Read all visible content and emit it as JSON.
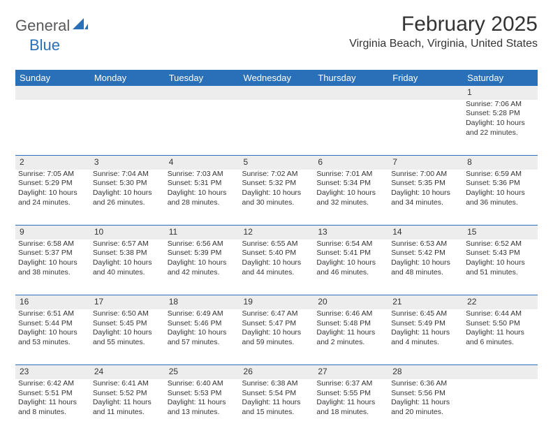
{
  "brand": {
    "part1": "General",
    "part2": "Blue",
    "color_gray": "#58595b",
    "color_blue": "#2970b8"
  },
  "title": "February 2025",
  "location": "Virginia Beach, Virginia, United States",
  "dayHeaders": [
    "Sunday",
    "Monday",
    "Tuesday",
    "Wednesday",
    "Thursday",
    "Friday",
    "Saturday"
  ],
  "colors": {
    "header_bg": "#2970b8",
    "header_fg": "#ffffff",
    "daynum_bg": "#ededed",
    "rule": "#2970b8",
    "text": "#333333",
    "page_bg": "#ffffff"
  },
  "fonts": {
    "title_size": 30,
    "location_size": 16,
    "header_size": 13,
    "cell_size": 10.5
  },
  "weeks": [
    [
      null,
      null,
      null,
      null,
      null,
      null,
      {
        "n": "1",
        "sr": "Sunrise: 7:06 AM",
        "ss": "Sunset: 5:28 PM",
        "d1": "Daylight: 10 hours",
        "d2": "and 22 minutes."
      }
    ],
    [
      {
        "n": "2",
        "sr": "Sunrise: 7:05 AM",
        "ss": "Sunset: 5:29 PM",
        "d1": "Daylight: 10 hours",
        "d2": "and 24 minutes."
      },
      {
        "n": "3",
        "sr": "Sunrise: 7:04 AM",
        "ss": "Sunset: 5:30 PM",
        "d1": "Daylight: 10 hours",
        "d2": "and 26 minutes."
      },
      {
        "n": "4",
        "sr": "Sunrise: 7:03 AM",
        "ss": "Sunset: 5:31 PM",
        "d1": "Daylight: 10 hours",
        "d2": "and 28 minutes."
      },
      {
        "n": "5",
        "sr": "Sunrise: 7:02 AM",
        "ss": "Sunset: 5:32 PM",
        "d1": "Daylight: 10 hours",
        "d2": "and 30 minutes."
      },
      {
        "n": "6",
        "sr": "Sunrise: 7:01 AM",
        "ss": "Sunset: 5:34 PM",
        "d1": "Daylight: 10 hours",
        "d2": "and 32 minutes."
      },
      {
        "n": "7",
        "sr": "Sunrise: 7:00 AM",
        "ss": "Sunset: 5:35 PM",
        "d1": "Daylight: 10 hours",
        "d2": "and 34 minutes."
      },
      {
        "n": "8",
        "sr": "Sunrise: 6:59 AM",
        "ss": "Sunset: 5:36 PM",
        "d1": "Daylight: 10 hours",
        "d2": "and 36 minutes."
      }
    ],
    [
      {
        "n": "9",
        "sr": "Sunrise: 6:58 AM",
        "ss": "Sunset: 5:37 PM",
        "d1": "Daylight: 10 hours",
        "d2": "and 38 minutes."
      },
      {
        "n": "10",
        "sr": "Sunrise: 6:57 AM",
        "ss": "Sunset: 5:38 PM",
        "d1": "Daylight: 10 hours",
        "d2": "and 40 minutes."
      },
      {
        "n": "11",
        "sr": "Sunrise: 6:56 AM",
        "ss": "Sunset: 5:39 PM",
        "d1": "Daylight: 10 hours",
        "d2": "and 42 minutes."
      },
      {
        "n": "12",
        "sr": "Sunrise: 6:55 AM",
        "ss": "Sunset: 5:40 PM",
        "d1": "Daylight: 10 hours",
        "d2": "and 44 minutes."
      },
      {
        "n": "13",
        "sr": "Sunrise: 6:54 AM",
        "ss": "Sunset: 5:41 PM",
        "d1": "Daylight: 10 hours",
        "d2": "and 46 minutes."
      },
      {
        "n": "14",
        "sr": "Sunrise: 6:53 AM",
        "ss": "Sunset: 5:42 PM",
        "d1": "Daylight: 10 hours",
        "d2": "and 48 minutes."
      },
      {
        "n": "15",
        "sr": "Sunrise: 6:52 AM",
        "ss": "Sunset: 5:43 PM",
        "d1": "Daylight: 10 hours",
        "d2": "and 51 minutes."
      }
    ],
    [
      {
        "n": "16",
        "sr": "Sunrise: 6:51 AM",
        "ss": "Sunset: 5:44 PM",
        "d1": "Daylight: 10 hours",
        "d2": "and 53 minutes."
      },
      {
        "n": "17",
        "sr": "Sunrise: 6:50 AM",
        "ss": "Sunset: 5:45 PM",
        "d1": "Daylight: 10 hours",
        "d2": "and 55 minutes."
      },
      {
        "n": "18",
        "sr": "Sunrise: 6:49 AM",
        "ss": "Sunset: 5:46 PM",
        "d1": "Daylight: 10 hours",
        "d2": "and 57 minutes."
      },
      {
        "n": "19",
        "sr": "Sunrise: 6:47 AM",
        "ss": "Sunset: 5:47 PM",
        "d1": "Daylight: 10 hours",
        "d2": "and 59 minutes."
      },
      {
        "n": "20",
        "sr": "Sunrise: 6:46 AM",
        "ss": "Sunset: 5:48 PM",
        "d1": "Daylight: 11 hours",
        "d2": "and 2 minutes."
      },
      {
        "n": "21",
        "sr": "Sunrise: 6:45 AM",
        "ss": "Sunset: 5:49 PM",
        "d1": "Daylight: 11 hours",
        "d2": "and 4 minutes."
      },
      {
        "n": "22",
        "sr": "Sunrise: 6:44 AM",
        "ss": "Sunset: 5:50 PM",
        "d1": "Daylight: 11 hours",
        "d2": "and 6 minutes."
      }
    ],
    [
      {
        "n": "23",
        "sr": "Sunrise: 6:42 AM",
        "ss": "Sunset: 5:51 PM",
        "d1": "Daylight: 11 hours",
        "d2": "and 8 minutes."
      },
      {
        "n": "24",
        "sr": "Sunrise: 6:41 AM",
        "ss": "Sunset: 5:52 PM",
        "d1": "Daylight: 11 hours",
        "d2": "and 11 minutes."
      },
      {
        "n": "25",
        "sr": "Sunrise: 6:40 AM",
        "ss": "Sunset: 5:53 PM",
        "d1": "Daylight: 11 hours",
        "d2": "and 13 minutes."
      },
      {
        "n": "26",
        "sr": "Sunrise: 6:38 AM",
        "ss": "Sunset: 5:54 PM",
        "d1": "Daylight: 11 hours",
        "d2": "and 15 minutes."
      },
      {
        "n": "27",
        "sr": "Sunrise: 6:37 AM",
        "ss": "Sunset: 5:55 PM",
        "d1": "Daylight: 11 hours",
        "d2": "and 18 minutes."
      },
      {
        "n": "28",
        "sr": "Sunrise: 6:36 AM",
        "ss": "Sunset: 5:56 PM",
        "d1": "Daylight: 11 hours",
        "d2": "and 20 minutes."
      },
      null
    ]
  ]
}
